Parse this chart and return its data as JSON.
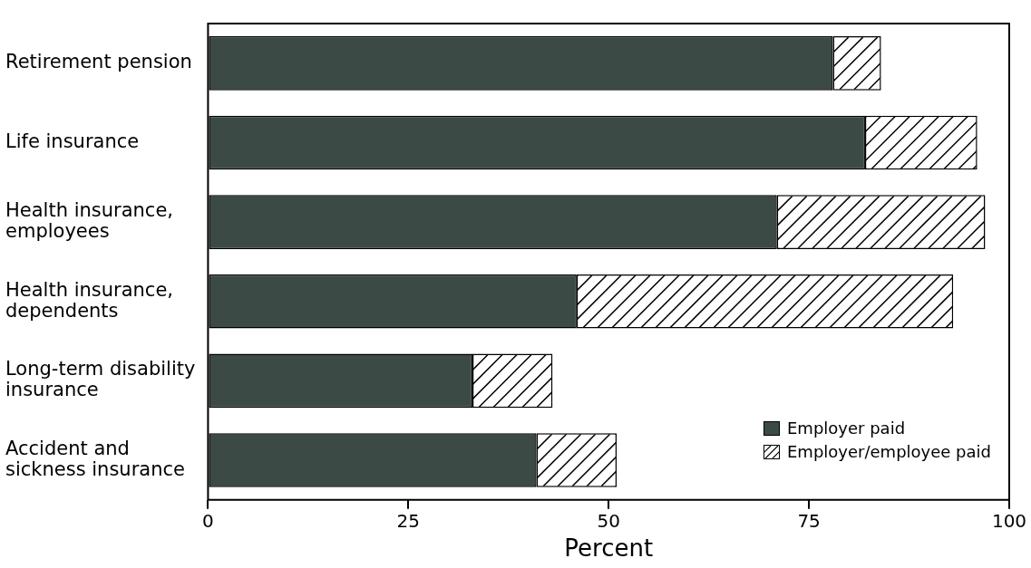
{
  "chart_data": {
    "type": "bar",
    "orientation": "horizontal",
    "stacked": true,
    "xlabel": "Percent",
    "categories": [
      "Retirement pension",
      "Life insurance",
      "Health insurance, employees",
      "Health insurance, dependents",
      "Long-term disability insurance",
      "Accident and sickness insurance"
    ],
    "series": [
      {
        "name": "Employer paid",
        "color": "#3b4a45",
        "values": [
          78,
          82,
          71,
          46,
          33,
          41
        ]
      },
      {
        "name": "Employer/employee paid",
        "color": "#ffffff",
        "values": [
          6,
          14,
          26,
          47,
          10,
          10
        ]
      }
    ],
    "xlim": [
      0,
      100
    ],
    "xticks": [
      0,
      25,
      50,
      75,
      100
    ],
    "grid": false,
    "legend": "bottom right"
  }
}
